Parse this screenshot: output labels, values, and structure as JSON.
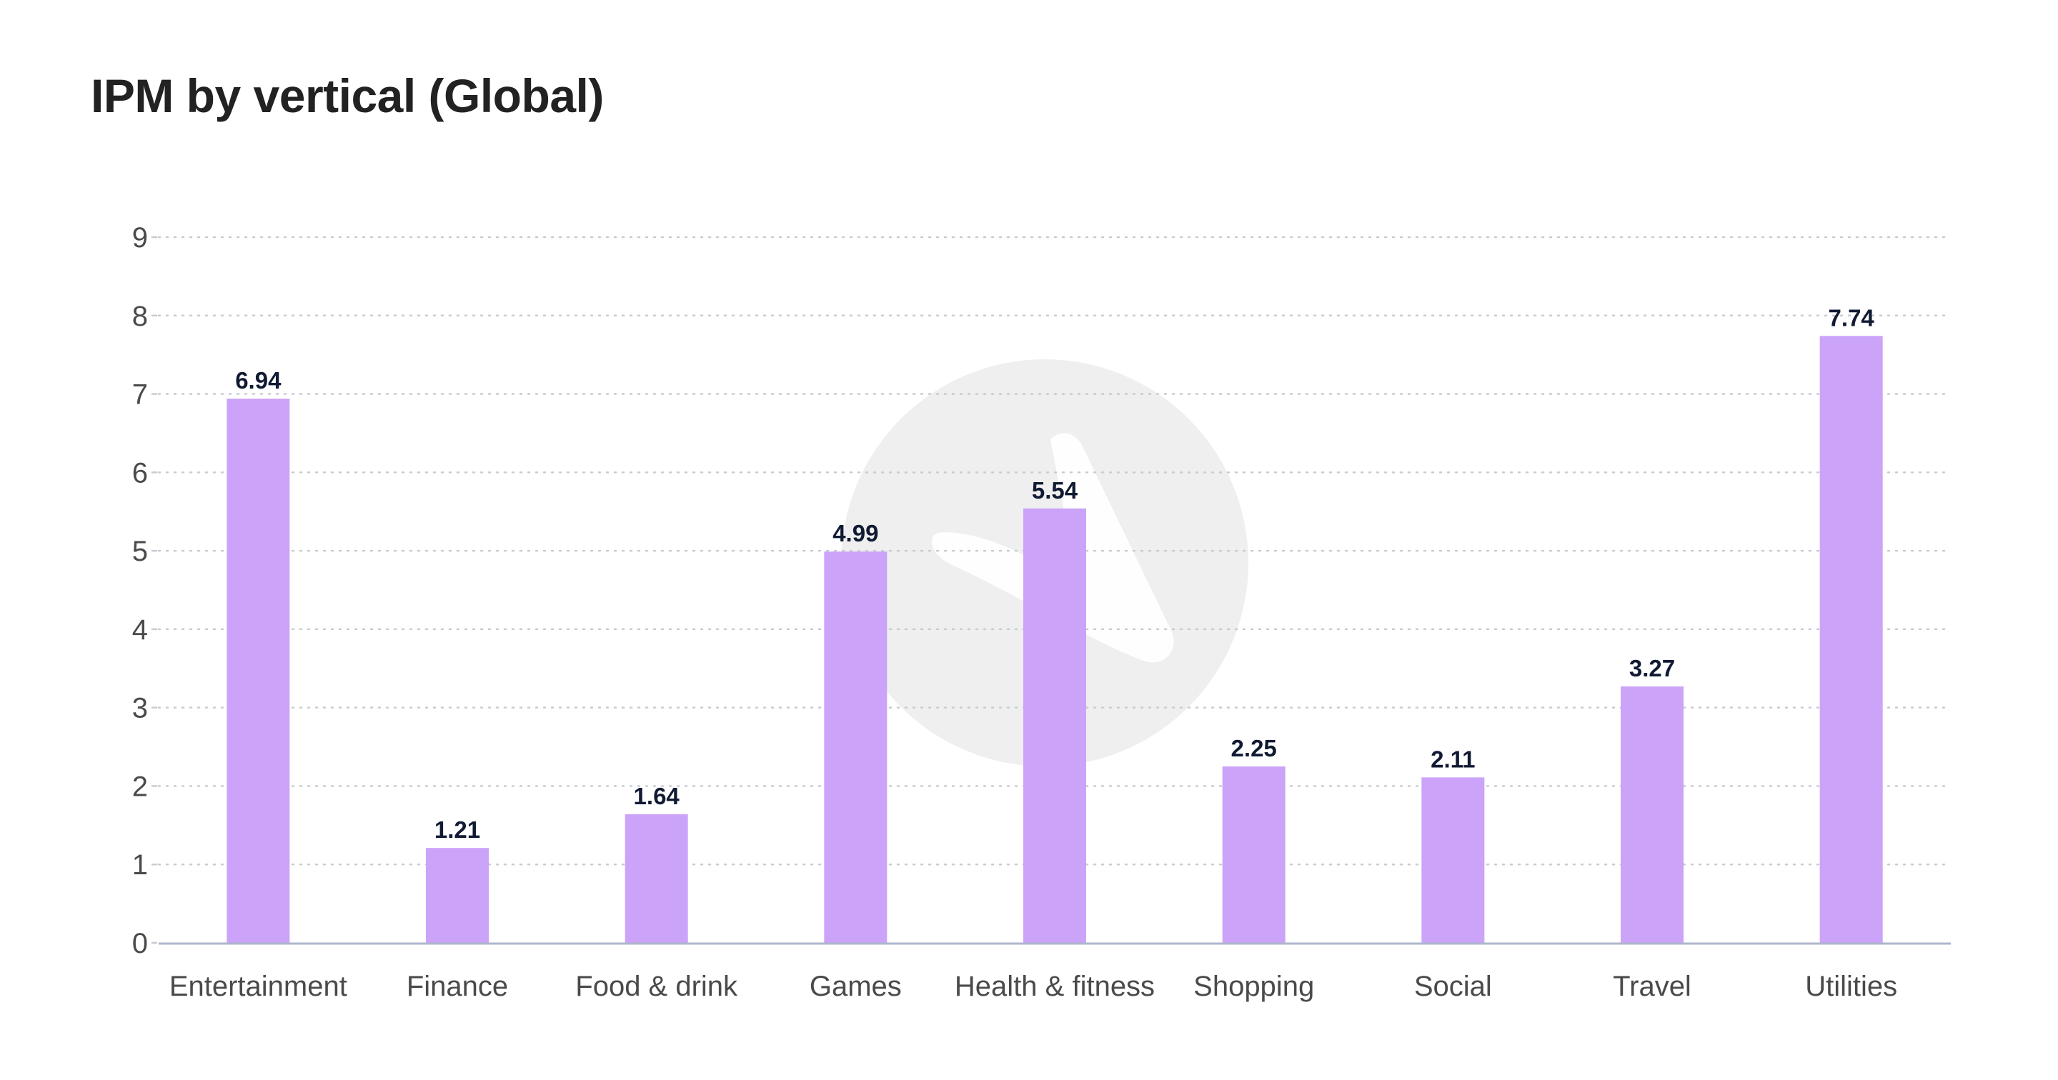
{
  "colors": {
    "bar": "#cba3f8",
    "grid": "#c9cbd3",
    "axis": "#aeb6cc",
    "watermark": "#efefef",
    "value_label": "#111a33",
    "text": "#4a4a4a"
  },
  "chart_data": {
    "type": "bar",
    "title": "IPM by vertical (Global)",
    "xlabel": "",
    "ylabel": "",
    "categories": [
      "Entertainment",
      "Finance",
      "Food & drink",
      "Games",
      "Health & fitness",
      "Shopping",
      "Social",
      "Travel",
      "Utilities"
    ],
    "values": [
      6.94,
      1.21,
      1.64,
      4.99,
      5.54,
      2.25,
      2.11,
      3.27,
      7.74
    ],
    "value_labels": [
      "6.94",
      "1.21",
      "1.64",
      "4.99",
      "5.54",
      "2.25",
      "2.11",
      "3.27",
      "7.74"
    ],
    "ylim": [
      0,
      9
    ],
    "yticks": [
      "0",
      "1",
      "2",
      "3",
      "4",
      "5",
      "6",
      "7",
      "8",
      "9"
    ],
    "grid": "horizontal dotted",
    "legend": "none"
  }
}
